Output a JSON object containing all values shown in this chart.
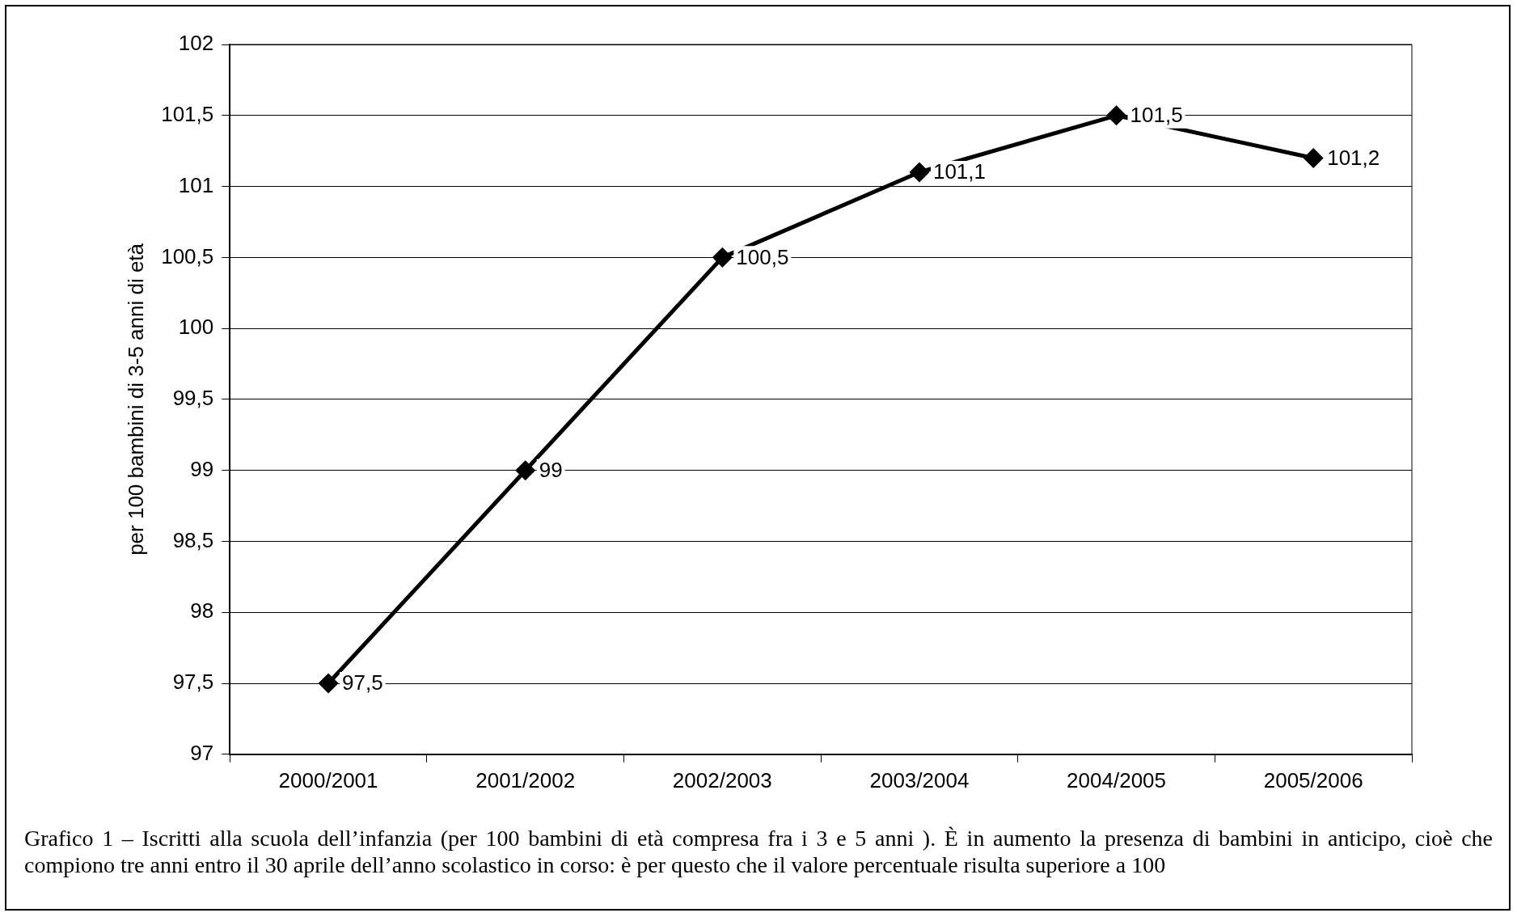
{
  "chart_data": {
    "type": "line",
    "ylabel": "per 100 bambini di 3-5 anni di età",
    "categories": [
      "2000/2001",
      "2001/2002",
      "2002/2003",
      "2003/2004",
      "2004/2005",
      "2005/2006"
    ],
    "series": [
      {
        "color": "#000000",
        "values": [
          97.5,
          99,
          100.5,
          101.1,
          101.5,
          101.2
        ],
        "value_labels": [
          "97,5",
          "99",
          "100,5",
          "101,1",
          "101,5",
          "101,2"
        ]
      }
    ],
    "ylim": [
      97,
      102
    ],
    "yticks": [
      97,
      {
        "value": 97.5,
        "label": "97,5"
      },
      98,
      {
        "value": 98.5,
        "label": "98,5"
      },
      99,
      {
        "value": 99.5,
        "label": "99,5"
      },
      100,
      {
        "value": 100.5,
        "label": "100,5"
      },
      101,
      {
        "value": 101.5,
        "label": "101,5"
      },
      102
    ],
    "grid": "y",
    "legend": false,
    "marker": "diamond",
    "line_style": "solid",
    "annotations": [
      "Grafico 1 – Iscritti alla scuola dell’infanzia (per 100 bambini di età compresa fra i 3 e 5 anni ). È in aumento la presenza di bambini in anticipo, cioè che compiono tre anni entro il 30 aprile dell’anno scolastico in corso: è per questo che il valore percentuale risulta superiore a 100"
    ]
  }
}
